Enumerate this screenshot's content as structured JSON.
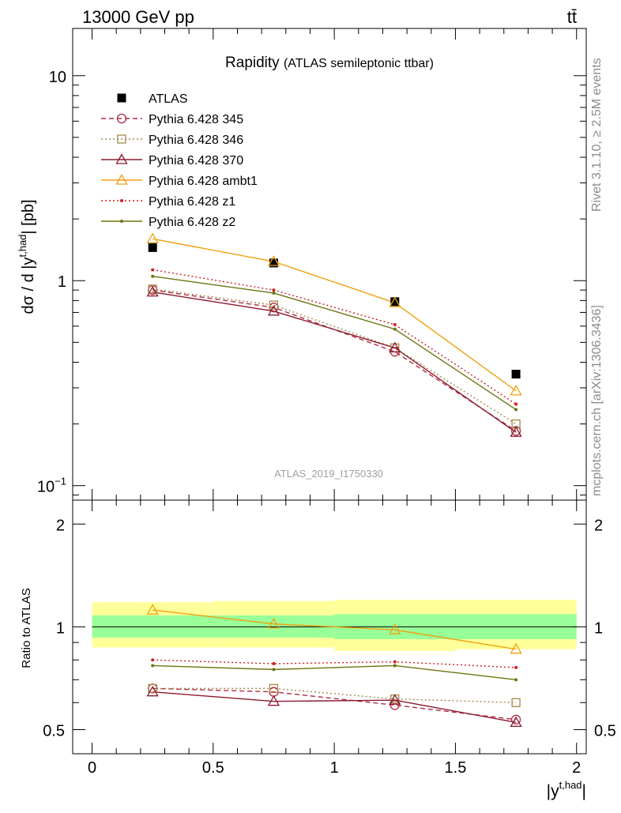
{
  "header": {
    "left": "13000 GeV pp",
    "right": "tt̄"
  },
  "side_labels": {
    "rivet": "Rivet 3.1.10, ≥ 2.5M events",
    "mcplots": "mcplots.cern.ch [arXiv:1306.3436]"
  },
  "chart_data": [
    {
      "type": "scatter",
      "panel": "main",
      "title": "Rapidity",
      "subtitle": "(ATLAS semileptonic ttbar)",
      "analysis": "ATLAS_2019_I1750330",
      "ylabel": "dσ / d |y^{t,had}| [pb]",
      "yscale": "log",
      "ylim": [
        0.085,
        17
      ],
      "xlim": [
        -0.08,
        2.04
      ],
      "x": [
        0.25,
        0.75,
        1.25,
        1.75
      ],
      "y_ticks": [
        {
          "value": 0.1,
          "base": "10",
          "exp": "−1"
        },
        {
          "value": 1,
          "base": "1",
          "exp": ""
        },
        {
          "value": 10,
          "base": "10",
          "exp": ""
        }
      ],
      "legend_position": "top-left",
      "series": [
        {
          "name": "ATLAS",
          "values": [
            1.45,
            1.22,
            0.79,
            0.35
          ],
          "color": "#000000",
          "marker": "square-filled",
          "line": "none"
        },
        {
          "name": "Pythia 6.428 345",
          "values": [
            0.9,
            0.74,
            0.45,
            0.185
          ],
          "color": "#b02b45",
          "marker": "circle-open",
          "line": "dashed"
        },
        {
          "name": "Pythia 6.428 346",
          "values": [
            0.91,
            0.76,
            0.47,
            0.2
          ],
          "color": "#a6884a",
          "marker": "square-open",
          "line": "dotted"
        },
        {
          "name": "Pythia 6.428 370",
          "values": [
            0.88,
            0.71,
            0.47,
            0.182
          ],
          "color": "#8b1a2e",
          "marker": "triangle-open",
          "line": "solid"
        },
        {
          "name": "Pythia 6.428 ambt1",
          "values": [
            1.6,
            1.24,
            0.78,
            0.29
          ],
          "color": "#f0a010",
          "marker": "triangle-open",
          "line": "solid"
        },
        {
          "name": "Pythia 6.428 z1",
          "values": [
            1.13,
            0.9,
            0.61,
            0.25
          ],
          "color": "#d0201e",
          "marker": "dot",
          "line": "dotted"
        },
        {
          "name": "Pythia 6.428 z2",
          "values": [
            1.05,
            0.87,
            0.58,
            0.235
          ],
          "color": "#6e7412",
          "marker": "dot",
          "line": "solid"
        }
      ]
    },
    {
      "type": "scatter",
      "panel": "ratio",
      "ylabel": "Ratio to ATLAS",
      "xlabel": "|y^{t,had}|",
      "yscale": "log",
      "ylim": [
        0.425,
        2.35
      ],
      "y_ticks": [
        0.5,
        1,
        2
      ],
      "y_tick_labels": [
        "0.5",
        "1",
        "2"
      ],
      "x_ticks": [
        0,
        0.5,
        1,
        1.5,
        2
      ],
      "x_tick_labels": [
        "0",
        "0.5",
        "1",
        "1.5",
        "2"
      ],
      "bands": [
        {
          "x0": 0,
          "x1": 0.5,
          "yellow": [
            0.87,
            1.18
          ],
          "green": [
            0.93,
            1.08
          ]
        },
        {
          "x0": 0.5,
          "x1": 1,
          "yellow": [
            0.87,
            1.19
          ],
          "green": [
            0.93,
            1.08
          ]
        },
        {
          "x0": 1,
          "x1": 1.5,
          "yellow": [
            0.85,
            1.2
          ],
          "green": [
            0.92,
            1.09
          ]
        },
        {
          "x0": 1.5,
          "x1": 2,
          "yellow": [
            0.86,
            1.2
          ],
          "green": [
            0.92,
            1.09
          ]
        }
      ],
      "series": [
        {
          "name": "Pythia 6.428 345",
          "values": [
            0.66,
            0.645,
            0.59,
            0.535
          ],
          "color": "#b02b45",
          "marker": "circle-open",
          "line": "dashed"
        },
        {
          "name": "Pythia 6.428 346",
          "values": [
            0.66,
            0.66,
            0.615,
            0.6
          ],
          "color": "#a6884a",
          "marker": "square-open",
          "line": "dotted"
        },
        {
          "name": "Pythia 6.428 370",
          "values": [
            0.645,
            0.605,
            0.61,
            0.525
          ],
          "color": "#8b1a2e",
          "marker": "triangle-open",
          "line": "solid"
        },
        {
          "name": "Pythia 6.428 ambt1",
          "values": [
            1.12,
            1.02,
            0.98,
            0.86
          ],
          "color": "#f0a010",
          "marker": "triangle-open",
          "line": "solid"
        },
        {
          "name": "Pythia 6.428 z1",
          "values": [
            0.8,
            0.78,
            0.79,
            0.76
          ],
          "color": "#d0201e",
          "marker": "dot",
          "line": "dotted"
        },
        {
          "name": "Pythia 6.428 z2",
          "values": [
            0.77,
            0.75,
            0.77,
            0.7
          ],
          "color": "#6e7412",
          "marker": "dot",
          "line": "solid"
        }
      ]
    }
  ]
}
